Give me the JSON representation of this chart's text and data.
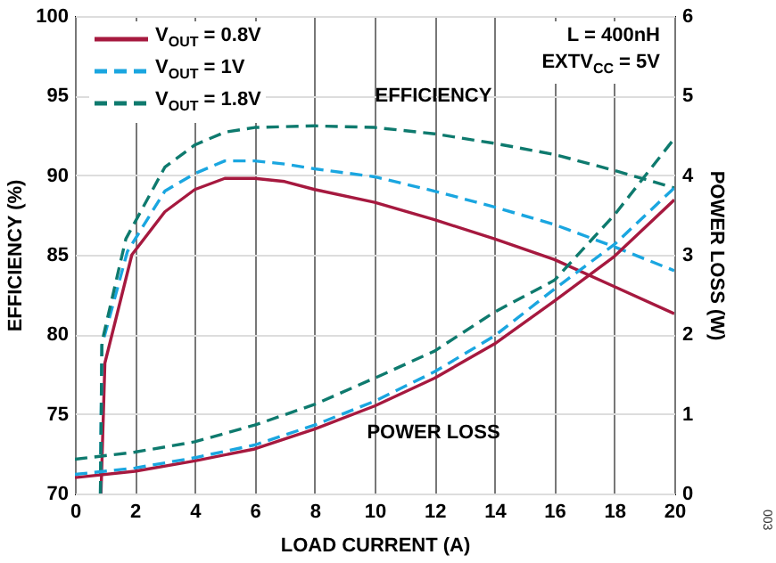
{
  "chart_data": {
    "type": "line",
    "xlabel": "LOAD CURRENT (A)",
    "ylabel": "EFFICIENCY (%)",
    "y2label": "POWER LOSS (W)",
    "xlim": [
      0,
      20
    ],
    "xticks": [
      0,
      2,
      4,
      6,
      8,
      10,
      12,
      14,
      16,
      18,
      20
    ],
    "ylim": [
      70,
      100
    ],
    "yticks": [
      70,
      75,
      80,
      85,
      90,
      95,
      100
    ],
    "y2lim": [
      0,
      6
    ],
    "y2ticks": [
      0,
      1,
      2,
      3,
      4,
      5,
      6
    ],
    "x": [
      0,
      2,
      4,
      6,
      8,
      10,
      12,
      14,
      16,
      18,
      20
    ],
    "grid": true,
    "legend": "top left",
    "series": [
      {
        "name": "V$_{OUT}$ = 0.8V",
        "color": "#a6193f",
        "line_style": "solid",
        "x": [
          0.87,
          1,
          1.9,
          3,
          4,
          5,
          6,
          7,
          8,
          10,
          12,
          14,
          16,
          18,
          20
        ],
        "values": [
          70,
          78.2,
          85,
          87.7,
          89.1,
          89.8,
          89.8,
          89.6,
          89.1,
          88.3,
          87.2,
          86.0,
          84.7,
          83.0,
          81.3
        ]
      },
      {
        "name": "V$_{OUT}$ = 1V",
        "color": "#1aa6e0",
        "line_style": "dashed",
        "x": [
          0.85,
          0.9,
          1.75,
          3,
          4,
          5,
          6,
          7,
          8,
          10,
          12,
          14,
          16,
          18,
          20
        ],
        "values": [
          70,
          79.3,
          85.2,
          89.0,
          90.1,
          90.9,
          90.9,
          90.7,
          90.4,
          89.9,
          89.0,
          88.0,
          86.9,
          85.5,
          84.0
        ]
      },
      {
        "name": "V$_{OUT}$ = 1.8V",
        "color": "#0e7a6e",
        "line_style": "dashed",
        "x": [
          0.85,
          0.9,
          1.7,
          3,
          4,
          5,
          6,
          8,
          10,
          12,
          14,
          16,
          18,
          20
        ],
        "values": [
          70,
          79.5,
          86,
          90.5,
          91.9,
          92.7,
          93.0,
          93.1,
          93.0,
          92.6,
          92.0,
          91.3,
          90.3,
          89.2
        ]
      },
      {
        "color": "#a6193f",
        "line_style": "solid",
        "axis": "y2",
        "values": [
          0.2,
          0.28,
          0.41,
          0.56,
          0.81,
          1.1,
          1.45,
          1.88,
          2.42,
          2.98,
          3.69
        ]
      },
      {
        "color": "#1aa6e0",
        "line_style": "dashed",
        "axis": "y2",
        "values": [
          0.24,
          0.32,
          0.45,
          0.61,
          0.86,
          1.16,
          1.53,
          1.98,
          2.57,
          3.13,
          3.84
        ]
      },
      {
        "color": "#0e7a6e",
        "line_style": "dashed",
        "axis": "y2",
        "values": [
          0.43,
          0.52,
          0.65,
          0.86,
          1.12,
          1.45,
          1.79,
          2.28,
          2.68,
          3.5,
          4.46
        ]
      }
    ],
    "annotations": [
      "L = 400nH",
      "EXTV$_{CC}$ = 5V",
      "EFFICIENCY",
      "POWER LOSS",
      "003"
    ]
  }
}
